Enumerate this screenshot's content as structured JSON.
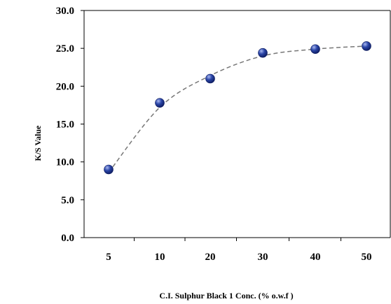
{
  "chart_data": {
    "type": "scatter",
    "title": "",
    "xlabel": "C.I. Sulphur Black 1 Conc. (% o.w.f )",
    "ylabel": "K/S Value",
    "categories": [
      "5",
      "10",
      "20",
      "30",
      "40",
      "50"
    ],
    "series": [
      {
        "values": [
          9.0,
          17.8,
          21.0,
          24.4,
          24.9,
          25.3
        ]
      }
    ],
    "trendline": {
      "style": "dashed",
      "values": [
        8.6,
        17.2,
        21.4,
        24.0,
        24.9,
        25.3
      ]
    },
    "ylim": [
      0,
      30
    ],
    "yticks": [
      "0.0",
      "5.0",
      "10.0",
      "15.0",
      "20.0",
      "25.0",
      "30.0"
    ],
    "grid": false,
    "legend": "none",
    "colors": {
      "marker": "#2b46a8",
      "marker_highlight": "#a9b8f0",
      "trendline": "#777777",
      "axis": "#000000"
    }
  }
}
